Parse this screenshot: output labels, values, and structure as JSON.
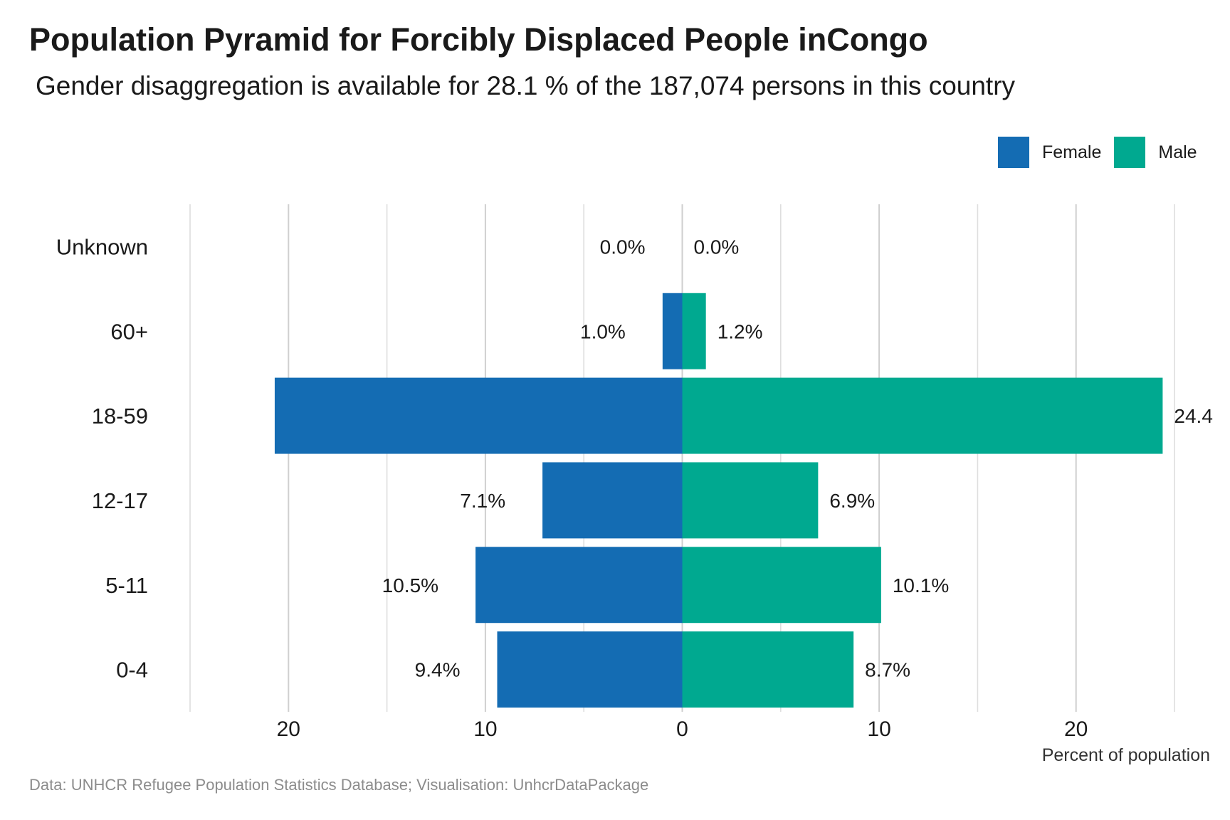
{
  "title": "Population Pyramid for Forcibly Displaced People inCongo",
  "subtitle": "Gender disaggregation is available for 28.1 % of the 187,074 persons in this country",
  "caption": "Data: UNHCR Refugee Population Statistics Database; Visualisation: UnhcrDataPackage",
  "legend": {
    "female_label": "Female",
    "male_label": "Male",
    "female_color": "#146CB3",
    "male_color": "#00A990"
  },
  "chart_data": {
    "type": "bar",
    "orientation": "horizontal-diverging",
    "categories": [
      "Unknown",
      "60+",
      "18-59",
      "12-17",
      "5-11",
      "0-4"
    ],
    "series": [
      {
        "name": "Female",
        "values": [
          0.0,
          1.0,
          20.7,
          7.1,
          10.5,
          9.4
        ],
        "labels": [
          "0.0%",
          "1.0%",
          "",
          "7.1%",
          "10.5%",
          "9.4%"
        ],
        "color": "#146CB3"
      },
      {
        "name": "Male",
        "values": [
          0.0,
          1.2,
          24.4,
          6.9,
          10.1,
          8.7
        ],
        "labels": [
          "0.0%",
          "1.2%",
          "24.4",
          "6.9%",
          "10.1%",
          "8.7%"
        ],
        "color": "#00A990"
      }
    ],
    "xlabel": "Percent of population",
    "xlim": [
      -25,
      25
    ],
    "xticks": [
      -20,
      -10,
      0,
      10,
      20
    ],
    "xtick_labels": [
      "20",
      "10",
      "0",
      "10",
      "20"
    ],
    "grid": true,
    "legend_position": "top-right"
  }
}
